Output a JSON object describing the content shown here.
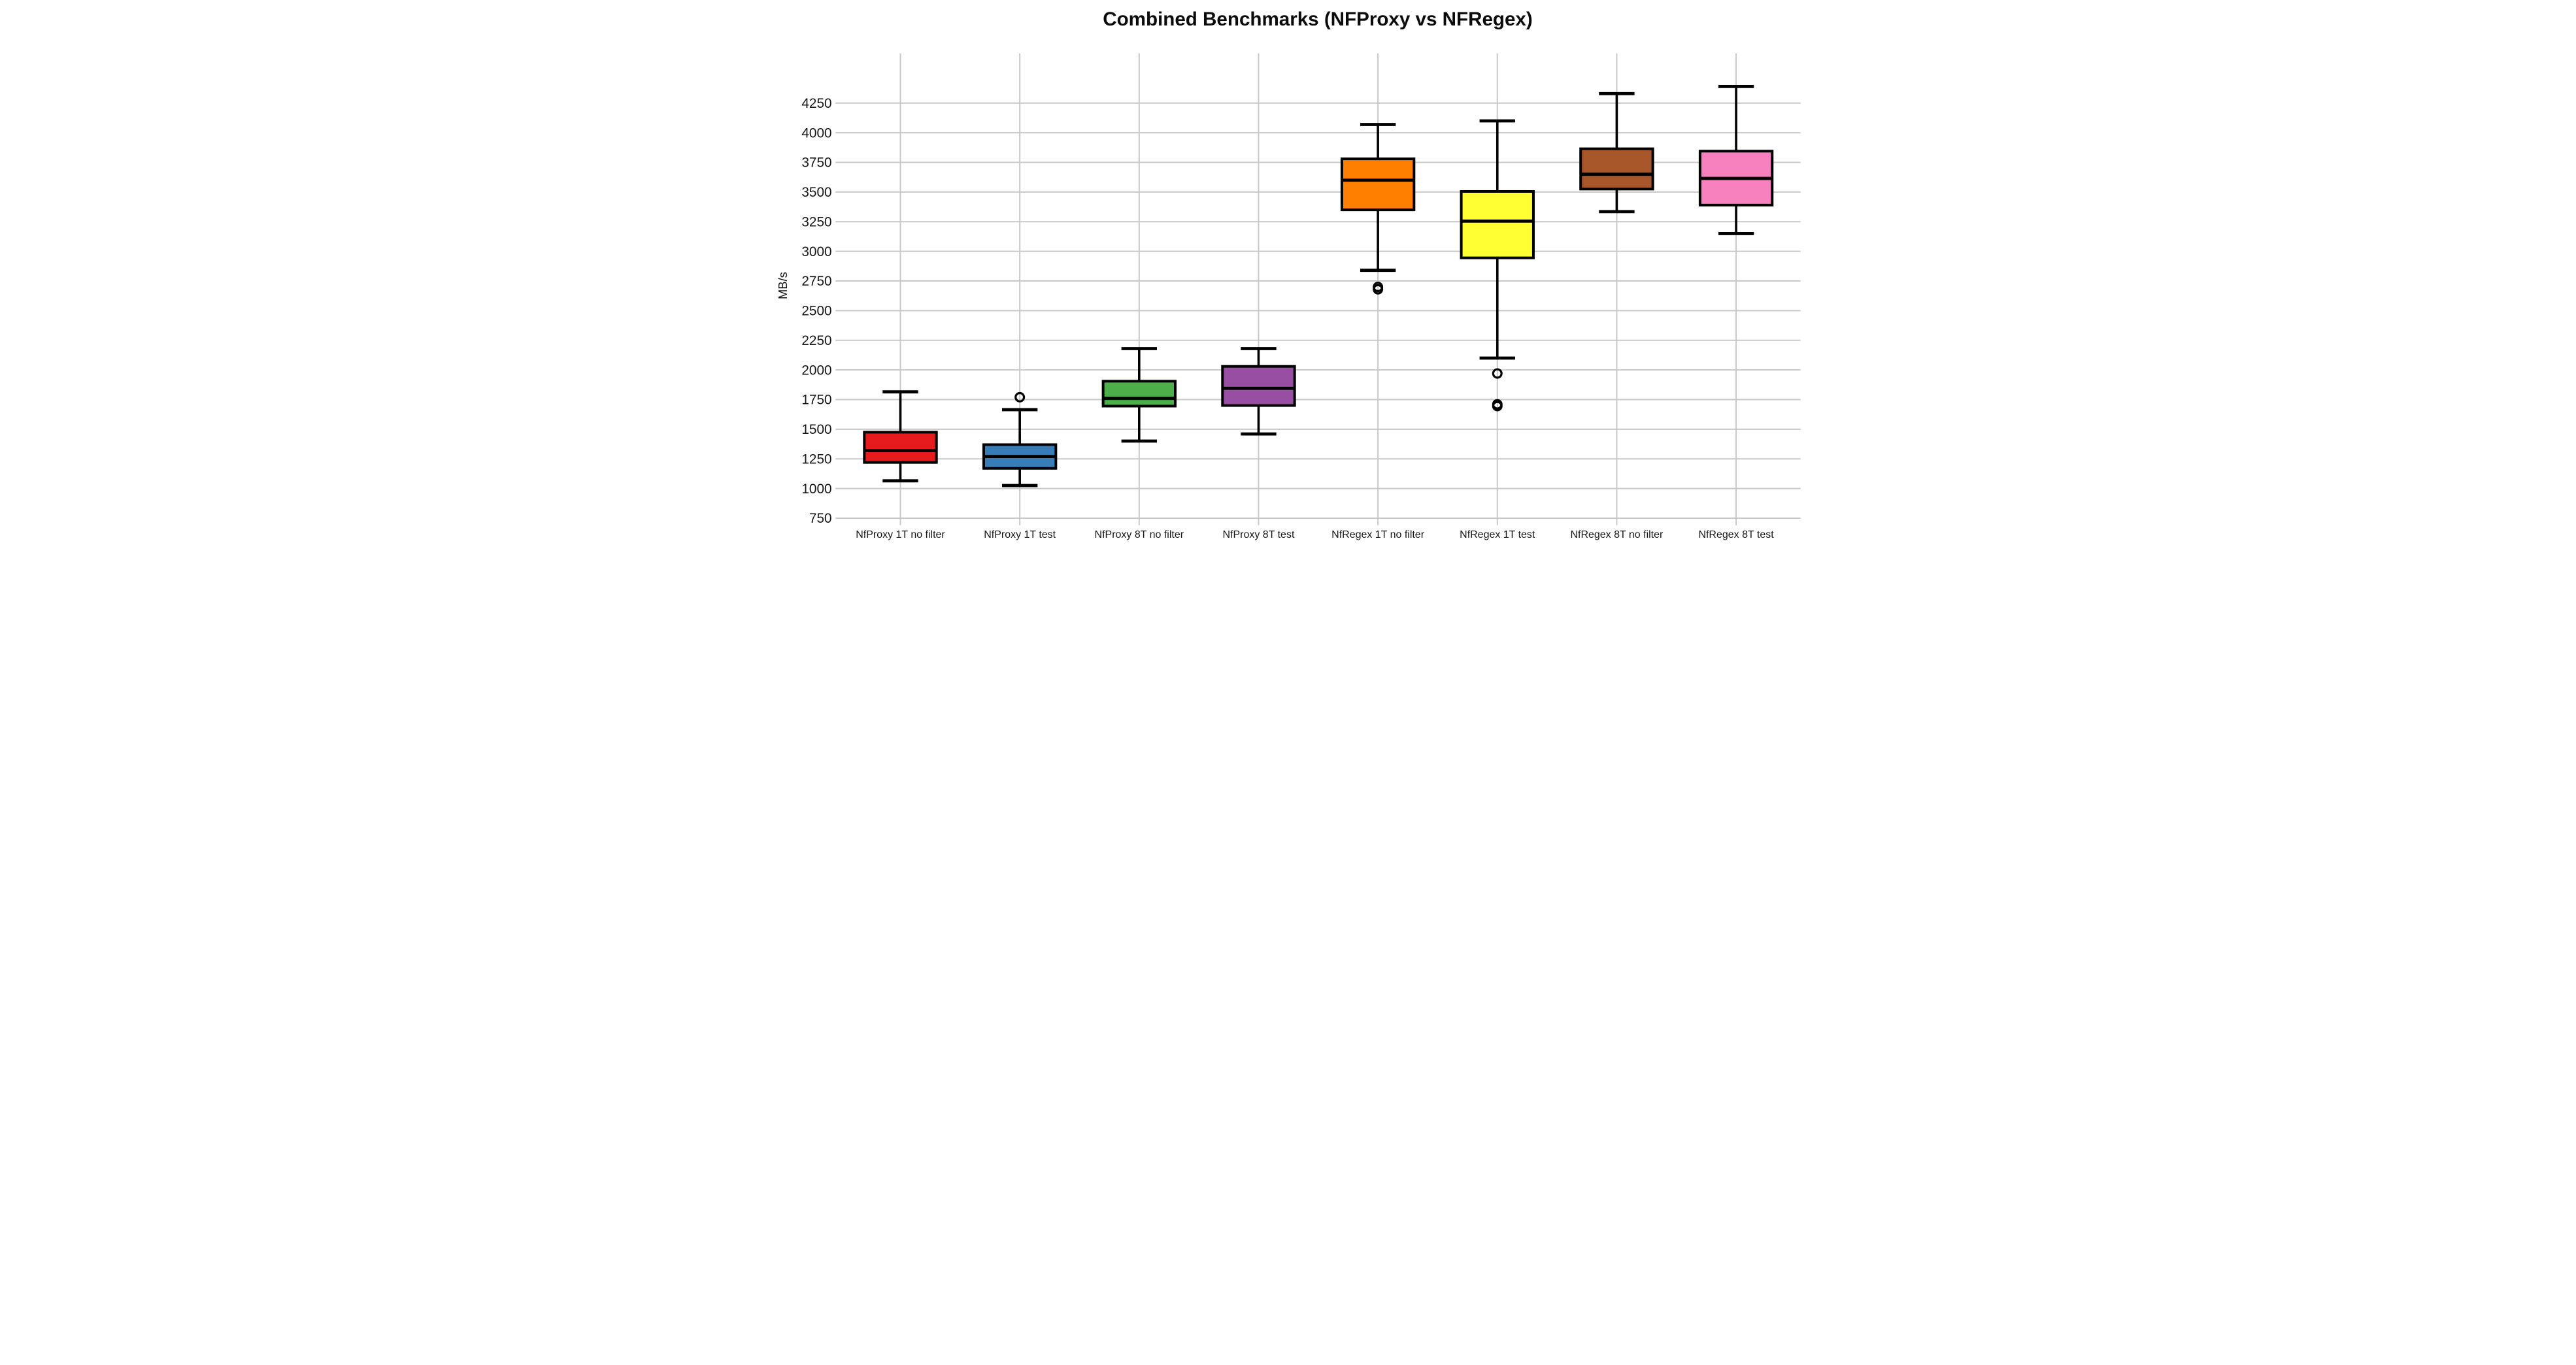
{
  "chart_data": {
    "type": "boxplot",
    "title": "Combined Benchmarks (NFProxy vs NFRegex)",
    "ylabel": "MB/s",
    "xlabel": "",
    "ylim": [
      750,
      4670
    ],
    "y_ticks": [
      750,
      1000,
      1250,
      1500,
      1750,
      2000,
      2250,
      2500,
      2750,
      3000,
      3250,
      3500,
      3750,
      4000,
      4250
    ],
    "grid": true,
    "legend": "none",
    "categories": [
      "NfProxy 1T no filter",
      "NfProxy 1T test",
      "NfProxy 8T no filter",
      "NfProxy 8T test",
      "NfRegex 1T no filter",
      "NfRegex 1T test",
      "NfRegex 8T no filter",
      "NfRegex 8T test"
    ],
    "series": [
      {
        "name": "NfProxy 1T no filter",
        "color": "#e41a1c",
        "whisker_low": 1065,
        "q1": 1220,
        "median": 1320,
        "q3": 1475,
        "whisker_high": 1815,
        "outliers": []
      },
      {
        "name": "NfProxy 1T test",
        "color": "#377eb8",
        "whisker_low": 1025,
        "q1": 1170,
        "median": 1270,
        "q3": 1370,
        "whisker_high": 1665,
        "outliers": [
          1770
        ]
      },
      {
        "name": "NfProxy 8T no filter",
        "color": "#4daf4a",
        "whisker_low": 1400,
        "q1": 1695,
        "median": 1760,
        "q3": 1905,
        "whisker_high": 2180,
        "outliers": []
      },
      {
        "name": "NfProxy 8T test",
        "color": "#984ea3",
        "whisker_low": 1460,
        "q1": 1700,
        "median": 1845,
        "q3": 2030,
        "whisker_high": 2180,
        "outliers": []
      },
      {
        "name": "NfRegex 1T no filter",
        "color": "#ff7f00",
        "whisker_low": 2840,
        "q1": 3350,
        "median": 3600,
        "q3": 3780,
        "whisker_high": 4070,
        "outliers": [
          2700,
          2680
        ]
      },
      {
        "name": "NfRegex 1T test",
        "color": "#ffff33",
        "whisker_low": 2100,
        "q1": 2945,
        "median": 3255,
        "q3": 3505,
        "whisker_high": 4100,
        "outliers": [
          1970,
          1710,
          1695
        ]
      },
      {
        "name": "NfRegex 8T no filter",
        "color": "#a65628",
        "whisker_low": 3335,
        "q1": 3525,
        "median": 3650,
        "q3": 3865,
        "whisker_high": 4330,
        "outliers": []
      },
      {
        "name": "NfRegex 8T test",
        "color": "#f781bf",
        "whisker_low": 3150,
        "q1": 3390,
        "median": 3615,
        "q3": 3845,
        "whisker_high": 4390,
        "outliers": []
      }
    ],
    "colors": {
      "grid": "#c8c8c8",
      "box_stroke": "#000000",
      "text": "#161616",
      "background": "#ffffff"
    }
  }
}
